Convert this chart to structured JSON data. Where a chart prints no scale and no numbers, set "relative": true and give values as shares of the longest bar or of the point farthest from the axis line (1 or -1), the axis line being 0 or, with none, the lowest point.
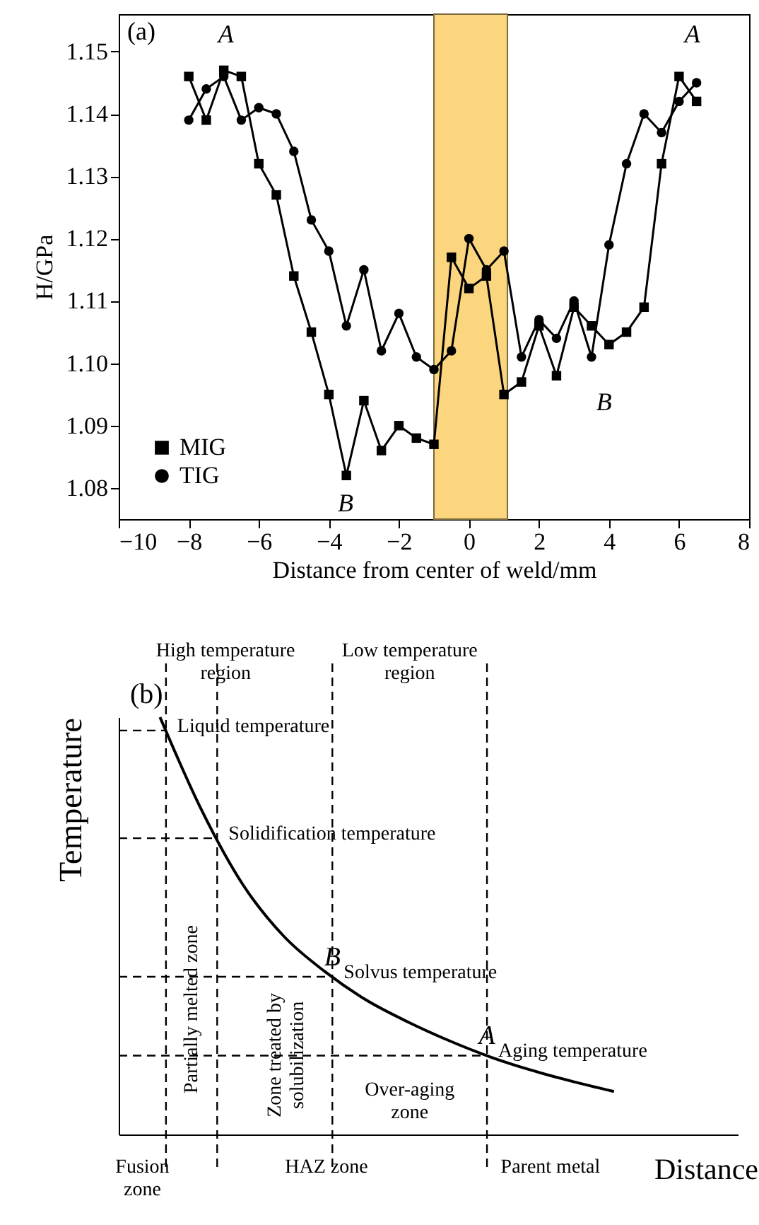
{
  "chart_data": [
    {
      "type": "line",
      "xlabel": "Distance from center of weld/mm",
      "ylabel": "H/GPa",
      "xlim": [
        -10,
        8
      ],
      "xticks": [
        -10,
        -8,
        -6,
        -4,
        -2,
        0,
        2,
        4,
        6,
        8
      ],
      "ylim": [
        1.075,
        1.156
      ],
      "yticks": [
        1.08,
        1.09,
        {
          "value": 1.1,
          "label": "1.10"
        },
        1.11,
        1.12,
        1.13,
        1.14,
        1.15
      ],
      "legend": "bottom left",
      "line_style": "solid",
      "bands": [
        {
          "axis": "x",
          "from": -1,
          "to": 1.1,
          "color": "#fbd67f"
        }
      ],
      "annotations": [
        "(a)",
        "A",
        "B",
        "A",
        "B"
      ],
      "series": [
        {
          "name": "MIG",
          "color": "#000000",
          "marker": "square",
          "x": [
            -8,
            -7.5,
            -7,
            -6.5,
            -6,
            -5.5,
            -5,
            -4.5,
            -4,
            -3.5,
            -3,
            -2.5,
            -2,
            -1.5,
            -1,
            -0.5,
            0,
            0.5,
            1,
            1.5,
            2,
            2.5,
            3,
            3.5,
            4,
            4.5,
            5,
            5.5,
            6,
            6.5
          ],
          "values": [
            1.146,
            1.139,
            1.147,
            1.146,
            1.132,
            1.127,
            1.114,
            1.105,
            1.095,
            1.082,
            1.094,
            1.086,
            1.09,
            1.088,
            1.087,
            1.117,
            1.112,
            1.114,
            1.095,
            1.097,
            1.106,
            1.098,
            1.109,
            1.106,
            1.103,
            1.105,
            1.109,
            1.132,
            1.146,
            1.142
          ]
        },
        {
          "name": "TIG",
          "color": "#000000",
          "marker": "circle",
          "x": [
            -8,
            -7.5,
            -7,
            -6.5,
            -6,
            -5.5,
            -5,
            -4.5,
            -4,
            -3.5,
            -3,
            -2.5,
            -2,
            -1.5,
            -1,
            -0.5,
            0,
            0.5,
            1,
            1.5,
            2,
            2.5,
            3,
            3.5,
            4,
            4.5,
            5,
            5.5,
            6,
            6.5
          ],
          "values": [
            1.139,
            1.144,
            1.146,
            1.139,
            1.141,
            1.14,
            1.134,
            1.123,
            1.118,
            1.106,
            1.115,
            1.102,
            1.108,
            1.101,
            1.099,
            1.102,
            1.12,
            1.115,
            1.118,
            1.101,
            1.107,
            1.104,
            1.11,
            1.101,
            1.119,
            1.132,
            1.14,
            1.137,
            1.142,
            1.145
          ]
        }
      ]
    },
    {
      "type": "line",
      "relative": true,
      "xlabel": "Distance",
      "ylabel": "Temperature",
      "categories": [
        null,
        null,
        null,
        null,
        null,
        null,
        null,
        null,
        null,
        null,
        null,
        null,
        null,
        null,
        null,
        null
      ],
      "ref_lines": [
        {
          "axis": "y",
          "value": 0.968,
          "label": "Liquid temperature",
          "line_style": "dashed"
        },
        {
          "axis": "y",
          "value": 0.71,
          "label": "Solidification temperature",
          "line_style": "dashed"
        },
        {
          "axis": "y",
          "value": 0.378,
          "label": "Solvus temperature",
          "line_style": "dashed"
        },
        {
          "axis": "y",
          "value": 0.189,
          "label": "Aging temperature",
          "line_style": "dashed"
        }
      ],
      "annotations": [
        "(b)",
        {
          "text": "B",
          "y": 0.378
        },
        {
          "text": "A",
          "y": 0.189
        },
        "High temperature region",
        "Low temperature region",
        "Partially melted zone",
        "Zone treated by solubilization",
        "Over-aging zone",
        "Fusion zone",
        "HAZ zone",
        "Parent metal"
      ],
      "series": [
        {
          "color": "#000000",
          "line_style": "solid",
          "values": [
            null,
            1.0,
            0.779,
            0.6,
            0.475,
            0.39,
            0.322,
            0.27,
            0.225,
            0.186,
            0.154,
            0.127,
            0.103,
            null,
            null,
            null
          ]
        }
      ]
    }
  ]
}
